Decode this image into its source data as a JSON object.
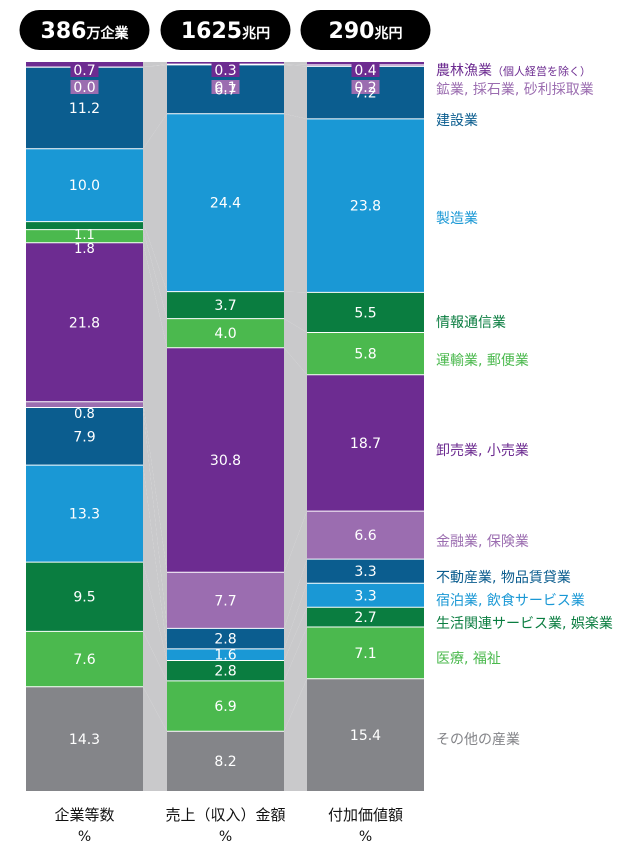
{
  "headers": [
    {
      "number": "386",
      "unit": "万企業"
    },
    {
      "number": "1625",
      "unit": "兆円"
    },
    {
      "number": "290",
      "unit": "兆円"
    }
  ],
  "footers": [
    {
      "line1": "企業等数",
      "line2": "%"
    },
    {
      "line1": "売上（収入）金額",
      "line2": "%"
    },
    {
      "line1": "付加価値額",
      "line2": "%"
    }
  ],
  "chart_data": {
    "type": "bar",
    "stacked": true,
    "normalized_percent": true,
    "categories": [
      "企業等数",
      "売上（収入）金額",
      "付加価値額"
    ],
    "series": [
      {
        "name": "農林漁業（個人経営を除く）",
        "values": [
          0.7,
          0.3,
          0.4
        ],
        "color": "#6d2c91"
      },
      {
        "name": "鉱業, 採石業, 砂利採取業",
        "values": [
          0.0,
          0.1,
          0.2
        ],
        "color": "#9b6db0"
      },
      {
        "name": "建設業",
        "values": [
          11.2,
          6.7,
          7.2
        ],
        "color": "#0b5d8f"
      },
      {
        "name": "製造業",
        "values": [
          10.0,
          24.4,
          23.8
        ],
        "color": "#1a98d5"
      },
      {
        "name": "情報通信業",
        "values": [
          1.1,
          3.7,
          5.5
        ],
        "color": "#0a7d40"
      },
      {
        "name": "運輸業, 郵便業",
        "values": [
          1.8,
          4.0,
          5.8
        ],
        "color": "#4bb94e"
      },
      {
        "name": "卸売業, 小売業",
        "values": [
          21.8,
          30.8,
          18.7
        ],
        "color": "#6d2c91"
      },
      {
        "name": "金融業, 保険業",
        "values": [
          0.8,
          7.7,
          6.6
        ],
        "color": "#9b6db0"
      },
      {
        "name": "不動産業, 物品賃貸業",
        "values": [
          7.9,
          2.8,
          3.3
        ],
        "color": "#0b5d8f"
      },
      {
        "name": "宿泊業, 飲食サービス業",
        "values": [
          13.3,
          1.6,
          3.3
        ],
        "color": "#1a98d5"
      },
      {
        "name": "生活関連サービス業, 娯楽業",
        "values": [
          9.5,
          2.8,
          2.7
        ],
        "color": "#0a7d40"
      },
      {
        "name": "医療, 福祉",
        "values": [
          7.6,
          6.9,
          7.1
        ],
        "color": "#4bb94e"
      },
      {
        "name": "その他の産業",
        "values": [
          14.3,
          8.2,
          15.4
        ],
        "color": "#848589"
      }
    ],
    "value_labels": [
      [
        "0.7",
        "0.0",
        "11.2",
        "10.0",
        "1.1",
        "1.8",
        "21.8",
        "0.8",
        "7.9",
        "13.3",
        "9.5",
        "7.6",
        "14.3"
      ],
      [
        "0.3",
        "0.1",
        "6.7",
        "24.4",
        "3.7",
        "4.0",
        "30.8",
        "7.7",
        "2.8",
        "1.6",
        "2.8",
        "6.9",
        "8.2"
      ],
      [
        "0.4",
        "0.2",
        "7.2",
        "23.8",
        "5.5",
        "5.8",
        "18.7",
        "6.6",
        "3.3",
        "3.3",
        "2.7",
        "7.1",
        "15.4"
      ]
    ],
    "legend_placement": "right"
  }
}
